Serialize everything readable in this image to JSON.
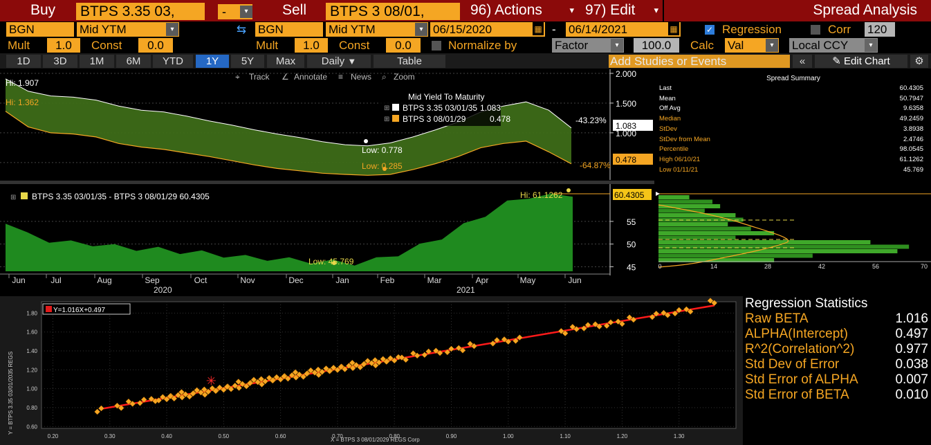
{
  "header": {
    "buy_label": "Buy",
    "buy_security": "BTPS 3.35 03,",
    "minus": "-",
    "sell_label": "Sell",
    "sell_security": "BTPS 3 08/01,",
    "actions_label": "96) Actions",
    "edit_label": "97) Edit",
    "title": "Spread Analysis"
  },
  "row2": {
    "source1": "BGN",
    "field1": "Mid YTM",
    "source2": "BGN",
    "field2": "Mid YTM",
    "date_start": "06/15/2020",
    "date_dash": "-",
    "date_end": "06/14/2021",
    "regression_label": "Regression",
    "corr_label": "Corr",
    "corr_value": "120"
  },
  "row3": {
    "mult_label": "Mult",
    "mult1": "1.0",
    "const_label": "Const",
    "const1": "0.0",
    "mult2": "1.0",
    "const2": "0.0",
    "normalize_label": "Normalize by",
    "factor_label": "Factor",
    "factor_value": "100.0",
    "calc_label": "Calc",
    "calc_value": "Val",
    "ccy_value": "Local CCY"
  },
  "rangebar": {
    "ranges": [
      "1D",
      "3D",
      "1M",
      "6M",
      "YTD",
      "1Y",
      "5Y",
      "Max"
    ],
    "active": "1Y",
    "daily": "Daily",
    "table": "Table",
    "add_studies": "Add Studies or Events",
    "edit_chart": "Edit Chart"
  },
  "toolbar": {
    "track": "Track",
    "annotate": "Annotate",
    "news": "News",
    "zoom": "Zoom"
  },
  "top_chart": {
    "hi_white": "Hi: 1.907",
    "hi_orange": "Hi: 1.362",
    "low_white": "Low: 0.778",
    "low_orange": "Low: 0.285",
    "legend_title": "Mid Yield To Maturity",
    "legend_s1": "BTPS 3.35 03/01/35",
    "legend_s1_val": "1.083",
    "legend_s2": "BTPS 3 08/01/29",
    "legend_s2_val": "0.478",
    "chg1": "-43.23%",
    "chg2": "-64.87%",
    "last1": "1.083",
    "last2": "0.478",
    "yticks": [
      "2.000",
      "1.500",
      "1.000"
    ]
  },
  "spread_chart": {
    "legend": "BTPS 3.35 03/01/35 - BTPS 3 08/01/29 60.4305",
    "hi": "Hi: 61.1262",
    "low": "Low: 45.769",
    "last": "60.4305",
    "yticks": [
      "55",
      "50",
      "45"
    ],
    "xmonths": [
      "Jun",
      "Jul",
      "Aug",
      "Sep",
      "Oct",
      "Nov",
      "Dec",
      "Jan",
      "Feb",
      "Mar",
      "Apr",
      "May",
      "Jun"
    ],
    "year1": "2020",
    "year2": "2021"
  },
  "histogram": {
    "xticks": [
      "0",
      "14",
      "28",
      "42",
      "56",
      "70"
    ]
  },
  "summary": {
    "title": "Spread Summary",
    "rows": [
      {
        "label": "Last",
        "value": "60.4305",
        "color": "#ffffff"
      },
      {
        "label": "Mean",
        "value": "50.7947",
        "color": "#ffffff"
      },
      {
        "label": "Off Avg",
        "value": "9.6358",
        "color": "#ffffff"
      },
      {
        "label": "Median",
        "value": "49.2459",
        "color": "#f5a623"
      },
      {
        "label": "StDev",
        "value": "3.8938",
        "color": "#f5a623"
      },
      {
        "label": "StDev from Mean",
        "value": "2.4746",
        "color": "#f5a623"
      },
      {
        "label": "Percentile",
        "value": "98.0545",
        "color": "#f5a623"
      },
      {
        "label": "High 06/10/21",
        "value": "61.1262",
        "color": "#f5a623"
      },
      {
        "label": "Low 01/11/21",
        "value": "45.769",
        "color": "#f5a623"
      }
    ]
  },
  "scatter": {
    "equation": "Y=1.016X+0.497",
    "ylabel": "Y = BTPS 3.35 03/01/2035 REGS",
    "xlabel": "X = BTPS 3 08/01/2029 REGS Corp",
    "xticks": [
      "0.20",
      "0.30",
      "0.40",
      "0.50",
      "0.60",
      "0.70",
      "0.80",
      "0.90",
      "1.00",
      "1.10",
      "1.20",
      "1.30"
    ],
    "yticks": [
      "1.80",
      "1.60",
      "1.40",
      "1.20",
      "1.00",
      "0.80",
      "0.60"
    ]
  },
  "regression": {
    "title": "Regression Statistics",
    "rows": [
      {
        "label": "Raw BETA",
        "value": "1.016"
      },
      {
        "label": "ALPHA(Intercept)",
        "value": "0.497"
      },
      {
        "label": "R^2(Correlation^2)",
        "value": "0.977"
      },
      {
        "label": "Std Dev of Error",
        "value": "0.038"
      },
      {
        "label": "Std Error of ALPHA",
        "value": "0.007"
      },
      {
        "label": "Std Error of BETA",
        "value": "0.010"
      }
    ]
  },
  "chart_data": [
    {
      "type": "area",
      "title": "Mid Yield To Maturity",
      "series": [
        {
          "name": "BTPS 3.35 03/01/35",
          "values": [
            1.907,
            1.7,
            1.62,
            1.6,
            1.55,
            1.45,
            1.38,
            1.35,
            1.28,
            1.2,
            1.13,
            1.05,
            0.98,
            0.92,
            0.85,
            0.8,
            0.78,
            0.83,
            0.93,
            1.05,
            1.18,
            1.35,
            1.45,
            1.52,
            1.38,
            1.083
          ]
        },
        {
          "name": "BTPS 3 08/01/29",
          "values": [
            1.362,
            1.1,
            1.0,
            0.98,
            0.93,
            0.82,
            0.76,
            0.72,
            0.66,
            0.6,
            0.53,
            0.46,
            0.4,
            0.36,
            0.32,
            0.3,
            0.285,
            0.3,
            0.38,
            0.48,
            0.6,
            0.75,
            0.82,
            0.86,
            0.68,
            0.478
          ]
        }
      ],
      "ylim": [
        0.3,
        2.0
      ]
    },
    {
      "type": "area",
      "title": "BTPS 3.35 03/01/35 - BTPS 3 08/01/29",
      "series": [
        {
          "name": "Spread",
          "values": [
            54.5,
            52.0,
            50.8,
            50.2,
            50.0,
            49.4,
            49.0,
            48.8,
            48.3,
            48.0,
            47.5,
            47.0,
            46.8,
            46.5,
            46.2,
            46.0,
            45.769,
            46.5,
            47.8,
            49.5,
            51.5,
            54.0,
            56.5,
            59.0,
            60.5,
            61.1262,
            60.4305
          ]
        }
      ],
      "ylim": [
        44,
        62
      ]
    },
    {
      "type": "scatter",
      "xlabel": "X = BTPS 3 08/01/2029 REGS Corp",
      "ylabel": "Y = BTPS 3.35 03/01/2035 REGS",
      "xlim": [
        0.18,
        1.4
      ],
      "ylim": [
        0.58,
        1.92
      ],
      "slope": 1.016,
      "intercept": 0.497,
      "points_x": [
        0.285,
        0.32,
        0.34,
        0.36,
        0.38,
        0.4,
        0.42,
        0.44,
        0.46,
        0.48,
        0.5,
        0.52,
        0.54,
        0.56,
        0.58,
        0.6,
        0.62,
        0.64,
        0.66,
        0.68,
        0.7,
        0.72,
        0.74,
        0.76,
        0.78,
        0.8,
        0.82,
        0.84,
        0.86,
        0.88,
        0.9,
        0.92,
        0.94,
        0.98,
        1.0,
        1.02,
        1.1,
        1.12,
        1.14,
        1.16,
        1.18,
        1.2,
        1.22,
        1.26,
        1.28,
        1.3,
        1.32,
        1.362
      ],
      "points_y": [
        0.78,
        0.82,
        0.84,
        0.86,
        0.88,
        0.9,
        0.92,
        0.94,
        0.96,
        0.98,
        1.0,
        1.02,
        1.05,
        1.07,
        1.09,
        1.11,
        1.13,
        1.15,
        1.17,
        1.19,
        1.21,
        1.23,
        1.25,
        1.27,
        1.29,
        1.31,
        1.33,
        1.35,
        1.37,
        1.39,
        1.41,
        1.43,
        1.45,
        1.49,
        1.51,
        1.53,
        1.61,
        1.63,
        1.65,
        1.67,
        1.69,
        1.71,
        1.73,
        1.77,
        1.79,
        1.82,
        1.84,
        1.907
      ],
      "highlight": {
        "x": 0.478,
        "y": 1.083
      }
    },
    {
      "type": "bar",
      "title": "Spread distribution",
      "categories": [
        "60",
        "59",
        "58",
        "57",
        "56",
        "55",
        "54",
        "53",
        "52",
        "51",
        "50",
        "49",
        "48",
        "47",
        "46"
      ],
      "values": [
        8,
        14,
        16,
        12,
        20,
        22,
        18,
        24,
        30,
        20,
        55,
        65,
        62,
        40,
        30
      ]
    }
  ]
}
